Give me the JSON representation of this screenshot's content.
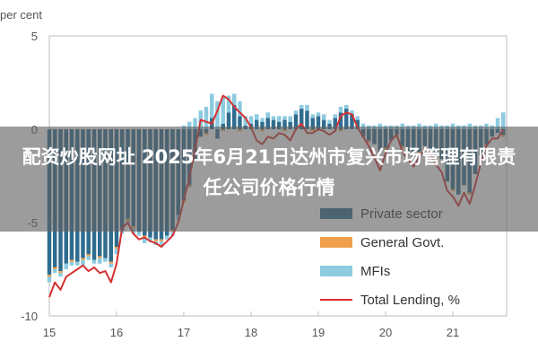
{
  "banner": {
    "title": "配资炒股网址 2025年6月21日达州市复兴市场管理有限责任公司价格行情"
  },
  "chart_data": {
    "type": "bar",
    "stacked": true,
    "ylabel": "per cent",
    "ylim": [
      -10,
      5
    ],
    "yticks": [
      5,
      0,
      -5,
      -10
    ],
    "xlim": [
      15,
      21.8
    ],
    "xticks": [
      15,
      16,
      17,
      18,
      19,
      20,
      21
    ],
    "grid": false,
    "legend_position": "bottom-right",
    "series": [
      {
        "name": "Private sector",
        "kind": "bar",
        "color": "#2f6c8f",
        "x": [
          15.0,
          15.083,
          15.167,
          15.25,
          15.333,
          15.417,
          15.5,
          15.583,
          15.667,
          15.75,
          15.833,
          15.917,
          16.0,
          16.083,
          16.167,
          16.25,
          16.333,
          16.417,
          16.5,
          16.583,
          16.667,
          16.75,
          16.833,
          16.917,
          17.0,
          17.083,
          17.167,
          17.25,
          17.333,
          17.417,
          17.5,
          17.583,
          17.667,
          17.75,
          17.833,
          17.917,
          18.0,
          18.083,
          18.167,
          18.25,
          18.333,
          18.417,
          18.5,
          18.583,
          18.667,
          18.75,
          18.833,
          18.917,
          19.0,
          19.083,
          19.167,
          19.25,
          19.333,
          19.417,
          19.5,
          19.583,
          19.667,
          19.75,
          19.833,
          19.917,
          20.0,
          20.083,
          20.167,
          20.25,
          20.333,
          20.417,
          20.5,
          20.583,
          20.667,
          20.75,
          20.833,
          20.917,
          21.0,
          21.083,
          21.167,
          21.25,
          21.333,
          21.417,
          21.5,
          21.583,
          21.667,
          21.75
        ],
        "values": [
          -7.8,
          -7.4,
          -7.6,
          -7.2,
          -7.0,
          -7.1,
          -6.9,
          -6.7,
          -7.0,
          -6.8,
          -6.9,
          -7.1,
          -6.3,
          -5.4,
          -4.8,
          -5.2,
          -5.5,
          -5.7,
          -5.8,
          -5.9,
          -5.9,
          -5.7,
          -5.4,
          -4.6,
          -3.8,
          -3.0,
          -1.6,
          -0.4,
          -0.2,
          0.6,
          -0.5,
          0.3,
          0.9,
          1.3,
          0.7,
          0.2,
          0.3,
          0.5,
          0.4,
          0.6,
          0.5,
          0.4,
          0.5,
          0.4,
          0.8,
          1.1,
          1.0,
          0.6,
          0.7,
          0.5,
          0.3,
          0.6,
          0.9,
          1.1,
          0.8,
          0.5,
          -0.4,
          -0.6,
          -0.8,
          -1.2,
          -1.0,
          -0.6,
          -0.3,
          -0.9,
          -1.3,
          -1.5,
          -1.2,
          -0.9,
          -1.1,
          -1.4,
          -1.6,
          -2.8,
          -3.2,
          -3.5,
          -3.0,
          -3.4,
          -2.4,
          -1.4,
          -0.8,
          -0.4,
          -0.2,
          -0.3
        ]
      },
      {
        "name": "General Govt.",
        "kind": "bar",
        "color": "#f0a04b",
        "x": [
          15.0,
          15.083,
          15.167,
          15.25,
          15.333,
          15.417,
          15.5,
          15.583,
          15.667,
          15.75,
          15.833,
          15.917,
          16.0,
          16.083,
          16.167,
          16.25,
          16.333,
          16.417,
          16.5,
          16.583,
          16.667,
          16.75,
          16.833,
          16.917,
          17.0,
          17.083,
          17.167,
          17.25,
          17.333,
          17.417,
          17.5,
          17.583,
          17.667,
          17.75,
          17.833,
          17.917,
          18.0,
          18.083,
          18.167,
          18.25,
          18.333,
          18.417,
          18.5,
          18.583,
          18.667,
          18.75,
          18.833,
          18.917,
          19.0,
          19.083,
          19.167,
          19.25,
          19.333,
          19.417,
          19.5,
          19.583,
          19.667,
          19.75,
          19.833,
          19.917,
          20.0,
          20.083,
          20.167,
          20.25,
          20.333,
          20.417,
          20.5,
          20.583,
          20.667,
          20.75,
          20.833,
          20.917,
          21.0,
          21.083,
          21.167,
          21.25,
          21.333,
          21.417,
          21.5,
          21.583,
          21.667,
          21.75
        ],
        "values": [
          -0.1,
          -0.1,
          -0.1,
          0.0,
          -0.1,
          0.0,
          -0.1,
          -0.1,
          0.0,
          -0.1,
          0.0,
          -0.1,
          -0.1,
          0.0,
          -0.1,
          -0.1,
          0.0,
          -0.1,
          0.0,
          -0.1,
          -0.1,
          0.0,
          -0.1,
          0.0,
          -0.1,
          -0.1,
          0.0,
          0.0,
          -0.1,
          0.0,
          0.0,
          -0.1,
          0.0,
          0.0,
          -0.1,
          0.0,
          0.0,
          0.0,
          -0.1,
          0.0,
          0.0,
          0.0,
          -0.1,
          0.0,
          0.0,
          0.0,
          0.0,
          -0.1,
          0.0,
          0.0,
          0.0,
          0.0,
          -0.1,
          0.0,
          0.0,
          0.0,
          0.0,
          -0.1,
          0.0,
          0.0,
          -0.1,
          0.0,
          0.0,
          -0.1,
          0.0,
          0.0,
          -0.1,
          0.0,
          0.0,
          -0.1,
          0.0,
          0.0,
          -0.1,
          0.0,
          0.0,
          -0.1,
          0.0,
          0.0,
          -0.1,
          0.0,
          0.0,
          -0.1
        ]
      },
      {
        "name": "MFIs",
        "kind": "bar",
        "color": "#8ccbe0",
        "x": [
          15.0,
          15.083,
          15.167,
          15.25,
          15.333,
          15.417,
          15.5,
          15.583,
          15.667,
          15.75,
          15.833,
          15.917,
          16.0,
          16.083,
          16.167,
          16.25,
          16.333,
          16.417,
          16.5,
          16.583,
          16.667,
          16.75,
          16.833,
          16.917,
          17.0,
          17.083,
          17.167,
          17.25,
          17.333,
          17.417,
          17.5,
          17.583,
          17.667,
          17.75,
          17.833,
          17.917,
          18.0,
          18.083,
          18.167,
          18.25,
          18.333,
          18.417,
          18.5,
          18.583,
          18.667,
          18.75,
          18.833,
          18.917,
          19.0,
          19.083,
          19.167,
          19.25,
          19.333,
          19.417,
          19.5,
          19.583,
          19.667,
          19.75,
          19.833,
          19.917,
          20.0,
          20.083,
          20.167,
          20.25,
          20.333,
          20.417,
          20.5,
          20.583,
          20.667,
          20.75,
          20.833,
          20.917,
          21.0,
          21.083,
          21.167,
          21.25,
          21.333,
          21.417,
          21.5,
          21.583,
          21.667,
          21.75
        ],
        "values": [
          -0.3,
          -0.2,
          -0.2,
          -0.3,
          -0.2,
          -0.2,
          -0.3,
          -0.2,
          -0.2,
          -0.3,
          -0.2,
          -0.2,
          -0.3,
          -0.2,
          -0.2,
          -0.3,
          -0.2,
          -0.3,
          -0.2,
          -0.2,
          -0.3,
          -0.2,
          -0.2,
          -0.3,
          0.2,
          0.4,
          0.6,
          1.0,
          1.2,
          1.3,
          1.5,
          1.4,
          0.9,
          0.6,
          0.8,
          0.5,
          0.4,
          0.3,
          0.2,
          0.3,
          0.2,
          0.3,
          0.2,
          0.3,
          0.2,
          0.2,
          0.3,
          0.2,
          0.2,
          0.3,
          0.2,
          0.2,
          0.3,
          0.2,
          0.2,
          0.2,
          0.3,
          0.2,
          0.2,
          0.3,
          0.2,
          0.2,
          0.2,
          0.3,
          0.2,
          0.2,
          0.3,
          0.2,
          0.2,
          0.3,
          0.2,
          0.2,
          0.3,
          0.2,
          0.2,
          0.3,
          0.2,
          0.2,
          0.3,
          0.2,
          0.6,
          0.9
        ]
      },
      {
        "name": "Total Lending, %",
        "kind": "line",
        "color": "#d63030",
        "x": [
          15.0,
          15.083,
          15.167,
          15.25,
          15.333,
          15.417,
          15.5,
          15.583,
          15.667,
          15.75,
          15.833,
          15.917,
          16.0,
          16.083,
          16.167,
          16.25,
          16.333,
          16.417,
          16.5,
          16.583,
          16.667,
          16.75,
          16.833,
          16.917,
          17.0,
          17.083,
          17.167,
          17.25,
          17.333,
          17.417,
          17.5,
          17.583,
          17.667,
          17.75,
          17.833,
          17.917,
          18.0,
          18.083,
          18.167,
          18.25,
          18.333,
          18.417,
          18.5,
          18.583,
          18.667,
          18.75,
          18.833,
          18.917,
          19.0,
          19.083,
          19.167,
          19.25,
          19.333,
          19.417,
          19.5,
          19.583,
          19.667,
          19.75,
          19.833,
          19.917,
          20.0,
          20.083,
          20.167,
          20.25,
          20.333,
          20.417,
          20.5,
          20.583,
          20.667,
          20.75,
          20.833,
          20.917,
          21.0,
          21.083,
          21.167,
          21.25,
          21.333,
          21.417,
          21.5,
          21.583,
          21.667,
          21.75
        ],
        "values": [
          -9.0,
          -8.2,
          -8.6,
          -7.9,
          -7.7,
          -7.5,
          -7.3,
          -7.6,
          -7.4,
          -7.7,
          -7.6,
          -8.2,
          -7.2,
          -5.3,
          -5.0,
          -5.6,
          -5.9,
          -5.8,
          -6.0,
          -6.1,
          -6.3,
          -6.0,
          -5.7,
          -5.0,
          -3.8,
          -2.6,
          -1.1,
          0.5,
          0.4,
          0.3,
          1.0,
          1.8,
          1.6,
          1.2,
          0.9,
          0.6,
          0.1,
          -0.6,
          -0.8,
          -0.4,
          -0.5,
          -0.2,
          -0.3,
          -0.6,
          0.0,
          0.3,
          -0.2,
          -0.2,
          0.0,
          -0.1,
          -0.3,
          -0.1,
          0.7,
          0.9,
          0.8,
          0.1,
          -0.4,
          -0.9,
          -1.5,
          -2.2,
          -1.3,
          -0.6,
          -0.3,
          -1.2,
          -1.6,
          -2.0,
          -1.5,
          -1.0,
          -1.3,
          -1.9,
          -2.3,
          -3.3,
          -3.6,
          -4.1,
          -3.4,
          -4.0,
          -3.0,
          -1.8,
          -0.9,
          -0.5,
          -0.5,
          0.0
        ]
      }
    ]
  }
}
